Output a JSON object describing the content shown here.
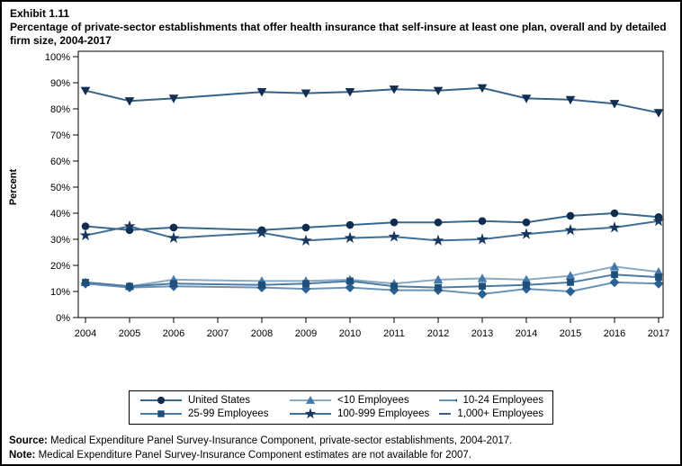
{
  "page": {
    "exhibit_label": "Exhibit 1.11",
    "title": "Percentage of private-sector establishments that offer health insurance that self-insure at least one plan, overall and by detailed firm size, 2004-2017",
    "source_label": "Source:",
    "source_text": "Medical Expenditure Panel Survey-Insurance Component, private-sector establishments, 2004-2017.",
    "note_label": "Note:",
    "note_text": "Medical Expenditure Panel Survey-Insurance Component estimates are not available for 2007."
  },
  "colors": {
    "axis": "#000000",
    "plot_border": "#000000",
    "background": "#ffffff"
  },
  "chart_data": {
    "type": "line",
    "title": "Percentage of private-sector establishments that offer health insurance that self-insure at least one plan, overall and by detailed firm size, 2004-2017",
    "xlabel": "",
    "ylabel": "Percent",
    "x": [
      2004,
      2005,
      2006,
      2007,
      2008,
      2009,
      2010,
      2011,
      2012,
      2013,
      2014,
      2015,
      2016,
      2017
    ],
    "ylim": [
      0,
      100
    ],
    "ytick_step": 10,
    "ytick_labels": [
      "0%",
      "10%",
      "20%",
      "30%",
      "40%",
      "50%",
      "60%",
      "70%",
      "80%",
      "90%",
      "100%"
    ],
    "grid": false,
    "legend_position": "bottom",
    "missing_year_note": "2007 estimates not available",
    "series": [
      {
        "name": "United States",
        "marker": "circle",
        "marker_color": "#0f2d4e",
        "line_color": "#35688e",
        "values": [
          35,
          33.5,
          34.5,
          null,
          33.5,
          34.5,
          35.5,
          36.5,
          36.5,
          37,
          36.5,
          39,
          40,
          38.5
        ]
      },
      {
        "name": "<10 Employees",
        "marker": "triangle-up",
        "marker_color": "#4379ab",
        "line_color": "#8aa9c3",
        "values": [
          13.5,
          12,
          14.5,
          null,
          14,
          14,
          14.5,
          13,
          14.5,
          15,
          14.5,
          16,
          19.5,
          17.5
        ]
      },
      {
        "name": "10-24 Employees",
        "marker": "diamond",
        "marker_color": "#2b6093",
        "line_color": "#6b93b5",
        "values": [
          13,
          11.5,
          12,
          null,
          11.5,
          11,
          11.5,
          10.5,
          10.5,
          9,
          11,
          10,
          13.5,
          13
        ]
      },
      {
        "name": "25-99 Employees",
        "marker": "square",
        "marker_color": "#1f4e79",
        "line_color": "#4c7ba6",
        "values": [
          13.5,
          12,
          13,
          null,
          12.5,
          13,
          14,
          12,
          11.5,
          12,
          12.5,
          13.5,
          16.5,
          15.5
        ]
      },
      {
        "name": "100-999 Employees",
        "marker": "star",
        "marker_color": "#17375e",
        "line_color": "#3f6f97",
        "values": [
          31.5,
          35,
          30.5,
          null,
          32.5,
          29.5,
          30.5,
          31,
          29.5,
          30,
          32,
          33.5,
          34.5,
          37
        ]
      },
      {
        "name": "1,000+ Employees",
        "marker": "triangle-down",
        "marker_color": "#112f52",
        "line_color": "#35618a",
        "values": [
          87,
          83,
          84,
          null,
          86.5,
          86,
          86.5,
          87.5,
          87,
          88,
          84,
          83.5,
          82,
          78.5
        ]
      }
    ]
  }
}
